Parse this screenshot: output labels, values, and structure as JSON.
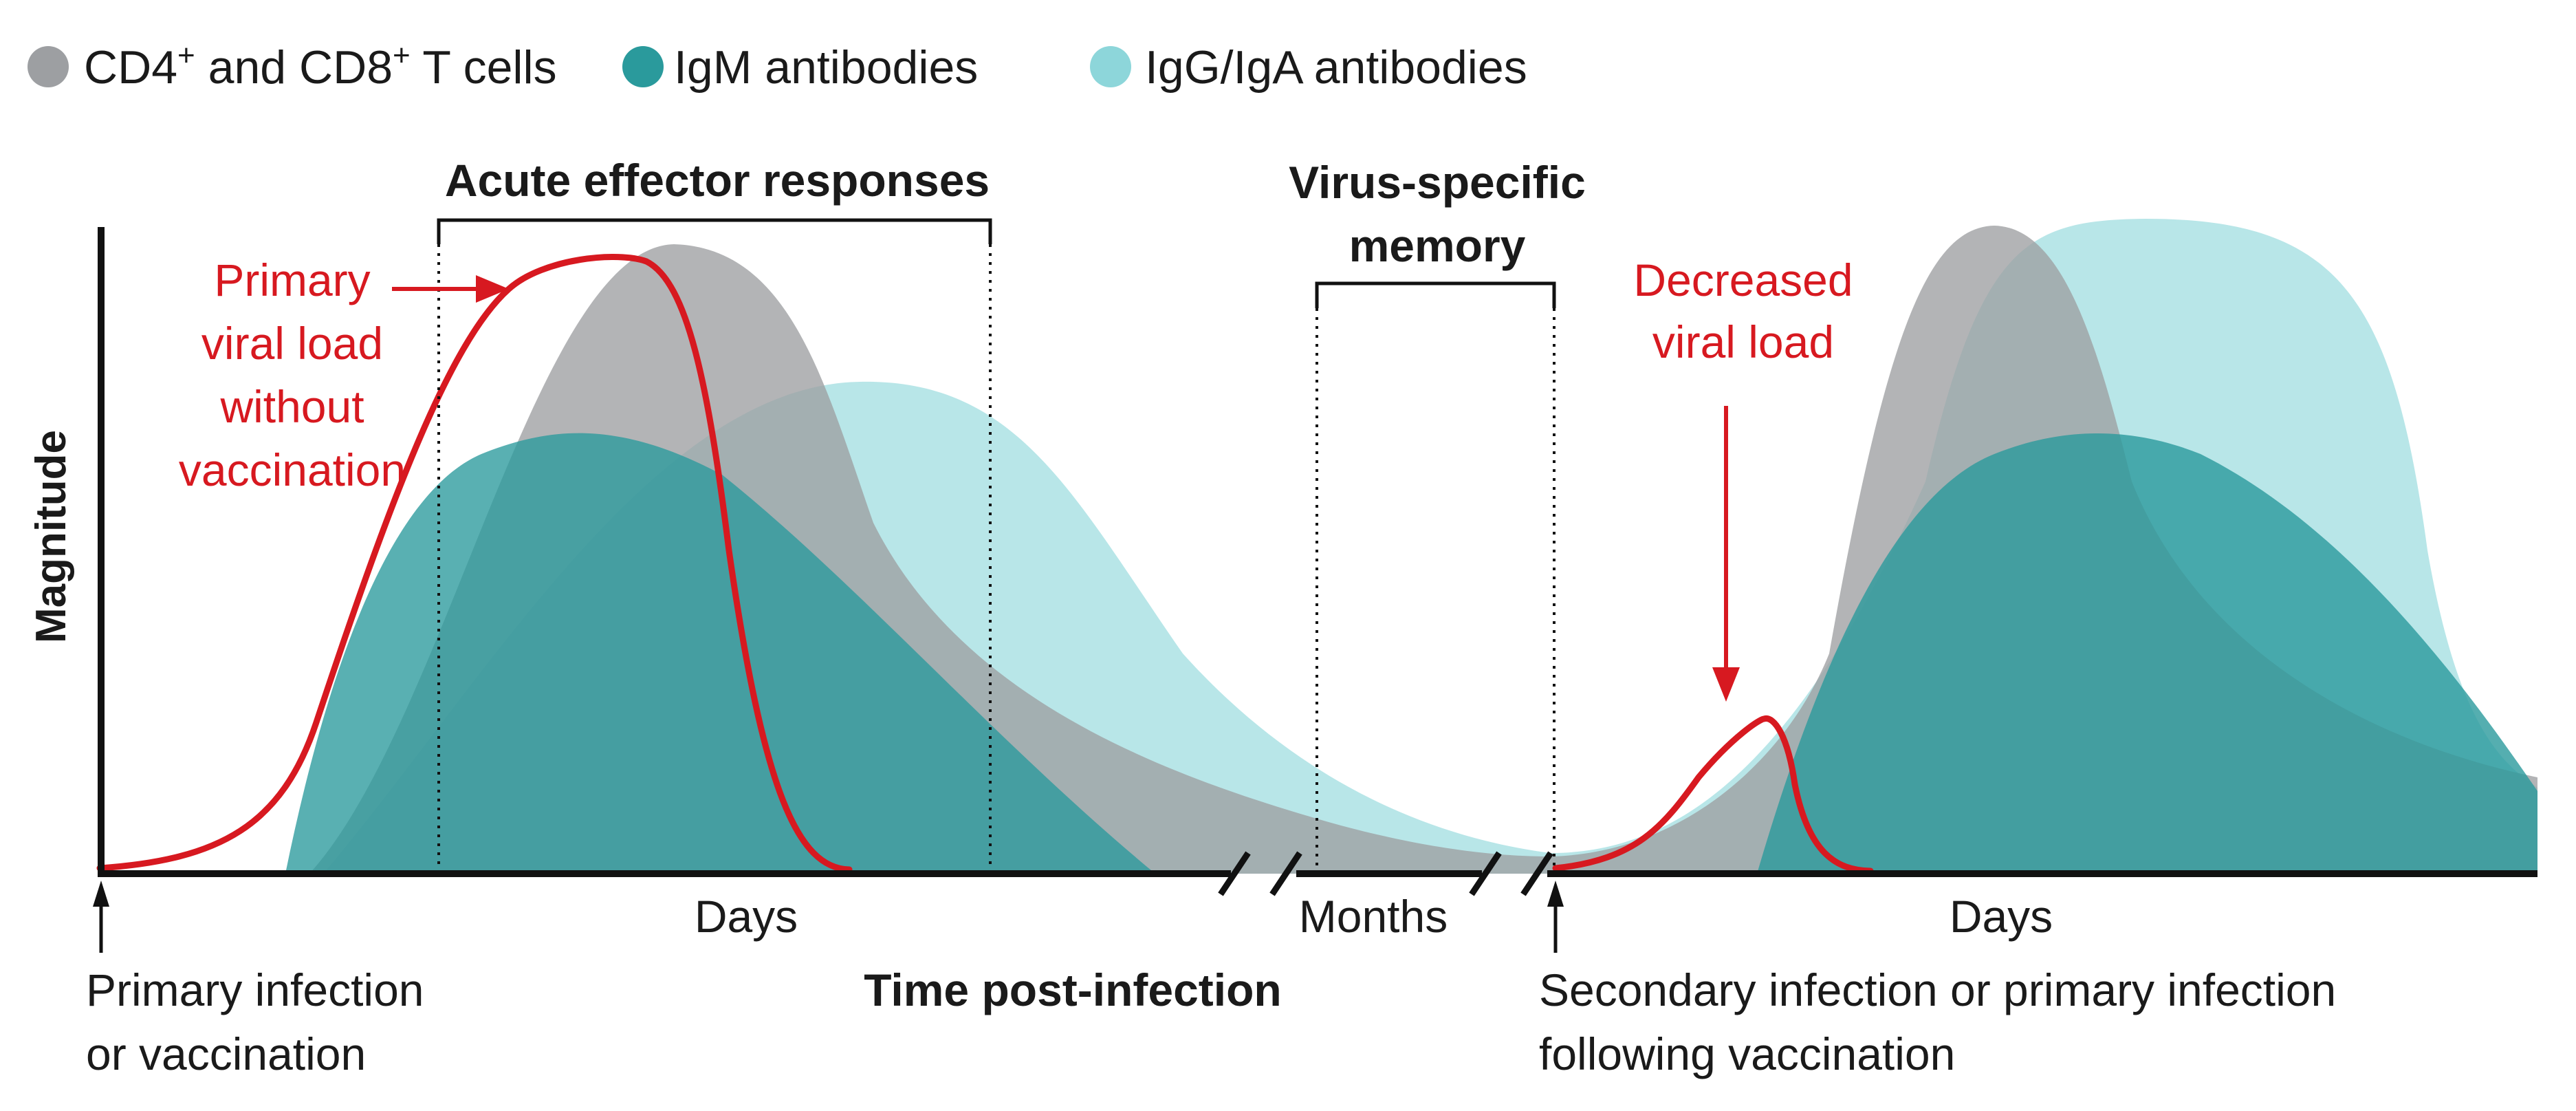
{
  "colors": {
    "tcells": "#9d9fa2",
    "igm": "#2a9a9c",
    "igg": "#8dd6da",
    "viral": "#d71920",
    "axis": "#111111"
  },
  "legend": [
    {
      "label_pre": "CD4",
      "sup1": "+",
      "label_mid": " and CD8",
      "sup2": "+",
      "label_post": " T cells",
      "color_key": "tcells"
    },
    {
      "label": "IgM antibodies",
      "color_key": "igm"
    },
    {
      "label": "IgG/IgA antibodies",
      "color_key": "igg"
    }
  ],
  "axes": {
    "y_label": "Magnitude",
    "x_label": "Time post-infection",
    "x_segments": [
      "Days",
      "Months",
      "Days"
    ]
  },
  "brackets": {
    "acute": "Acute effector responses",
    "memory_line1": "Virus-specific",
    "memory_line2": "memory"
  },
  "annotations": {
    "primary_viral": [
      "Primary",
      "viral load",
      "without",
      "vaccination"
    ],
    "decreased_viral": [
      "Decreased",
      "viral load"
    ]
  },
  "events": {
    "primary": [
      "Primary infection",
      "or vaccination"
    ],
    "secondary": [
      "Secondary infection or primary infection",
      "following vaccination"
    ]
  },
  "icons": {
    "legend_swatch": "circle",
    "event_marker": "arrow-up-icon",
    "axis_break": "double-slash"
  }
}
